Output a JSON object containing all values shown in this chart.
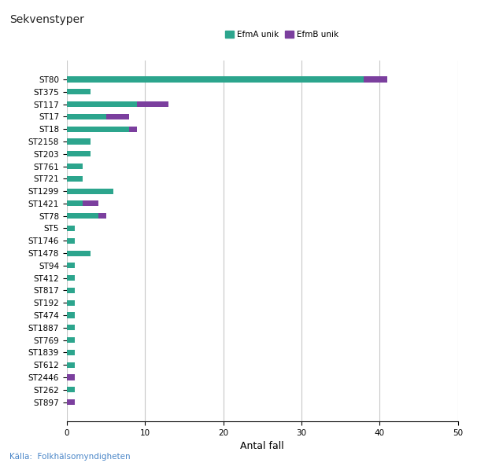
{
  "title": "Sekvenstyper",
  "xlabel": "Antal fall",
  "legend_labels": [
    "EfmA unik",
    "EfmB unik"
  ],
  "categories": [
    "ST80",
    "ST375",
    "ST117",
    "ST17",
    "ST18",
    "ST2158",
    "ST203",
    "ST761",
    "ST721",
    "ST1299",
    "ST1421",
    "ST78",
    "ST5",
    "ST1746",
    "ST1478",
    "ST94",
    "ST412",
    "ST817",
    "ST192",
    "ST474",
    "ST1887",
    "ST769",
    "ST1839",
    "ST612",
    "ST2446",
    "ST262",
    "ST897"
  ],
  "efmA": [
    38,
    3,
    9,
    5,
    8,
    3,
    3,
    2,
    2,
    6,
    2,
    4,
    1,
    1,
    3,
    1,
    1,
    1,
    1,
    1,
    1,
    1,
    1,
    1,
    0,
    1,
    0
  ],
  "efmB": [
    3,
    0,
    4,
    3,
    1,
    0,
    0,
    0,
    0,
    0,
    2,
    1,
    0,
    0,
    0,
    0,
    0,
    0,
    0,
    0,
    0,
    0,
    0,
    0,
    1,
    0,
    1
  ],
  "xlim": [
    0,
    50
  ],
  "xticks": [
    0,
    10,
    20,
    30,
    40,
    50
  ],
  "color_efmA": "#2ca58d",
  "color_efmB": "#7b3f9e",
  "bg_color": "#ffffff",
  "title_color": "#222222",
  "source_text": "Källa:  Folkhälsomyndigheten",
  "source_color": "#4a86c8",
  "grid_color": "#c8c8c8",
  "title_fontsize": 10,
  "axis_label_fontsize": 9,
  "tick_fontsize": 7.5,
  "source_fontsize": 7.5
}
